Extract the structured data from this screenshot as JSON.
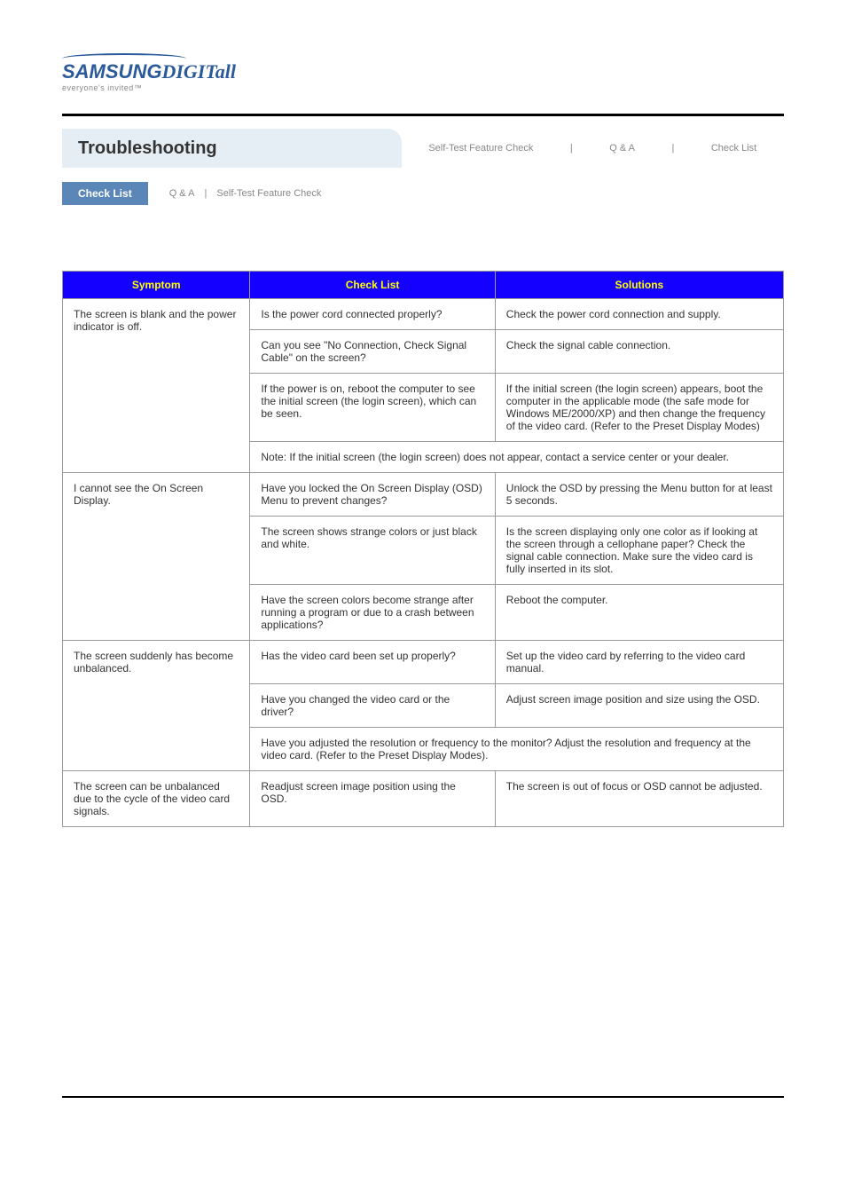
{
  "logo": {
    "brand": "SAMSUNG",
    "brand_italic": "DIGITall",
    "tagline": "everyone's invited™"
  },
  "header": {
    "title": "Troubleshooting",
    "tabs": [
      "Self-Test Feature Check",
      "Q & A",
      "Check List"
    ]
  },
  "subtabs": {
    "active": "Check List",
    "others": [
      "Q & A",
      "Self-Test Feature Check"
    ]
  },
  "table": {
    "headers": [
      "Symptom",
      "Check List",
      "Solutions"
    ],
    "colors": {
      "header_bg": "#1400ff",
      "header_fg": "#ffff00",
      "border": "#999999",
      "text": "#333333"
    },
    "rows": [
      {
        "symptom": "The screen is blank and the power indicator is off.",
        "checks": [
          {
            "check": "Is the power cord connected properly?",
            "solution": "Check the power cord connection and supply."
          },
          {
            "check": "Can you see \"No Connection, Check Signal Cable\" on the screen?",
            "solution": "Check the signal cable connection."
          },
          {
            "check": "If the power is on, reboot the computer to see the initial screen (the login screen), which can be seen.",
            "solution": "If the initial screen (the login screen) appears, boot the computer in the applicable mode (the safe mode for Windows ME/2000/XP) and then change the frequency of the video card. (Refer to the Preset Display Modes)"
          }
        ],
        "note": "Note: If the initial screen (the login screen) does not appear, contact a service center or your dealer."
      },
      {
        "symptom": "I cannot see the On Screen Display.",
        "checks": [
          {
            "check": "Have you locked the On Screen Display (OSD) Menu to prevent changes?",
            "solution": "Unlock the OSD by pressing the Menu button for at least 5 seconds."
          },
          {
            "check": "The screen shows strange colors or just black and white.",
            "solution": "Is the screen displaying only one color as if looking at the screen through a cellophane paper? Check the signal cable connection. Make sure the video card is fully inserted in its slot."
          },
          {
            "check": "Have the screen colors become strange after running a program or due to a crash between applications?",
            "solution": "Reboot the computer."
          }
        ]
      },
      {
        "symptom": "The screen suddenly has become unbalanced.",
        "checks": [
          {
            "check": "Has the video card been set up properly?",
            "solution": "Set up the video card by referring to the video card manual."
          },
          {
            "check": "Have you changed the video card or the driver?",
            "solution": "Adjust screen image position and size using the OSD."
          }
        ],
        "note": "Have you adjusted the resolution or frequency to the monitor? Adjust the resolution and frequency at the video card. (Refer to the Preset Display Modes)."
      },
      {
        "symptom": "The screen can be unbalanced due to the cycle of the video card signals.",
        "checks": [
          {
            "check": "Readjust screen image position using the OSD.",
            "solution": "The screen is out of focus or OSD cannot be adjusted."
          }
        ]
      }
    ]
  }
}
